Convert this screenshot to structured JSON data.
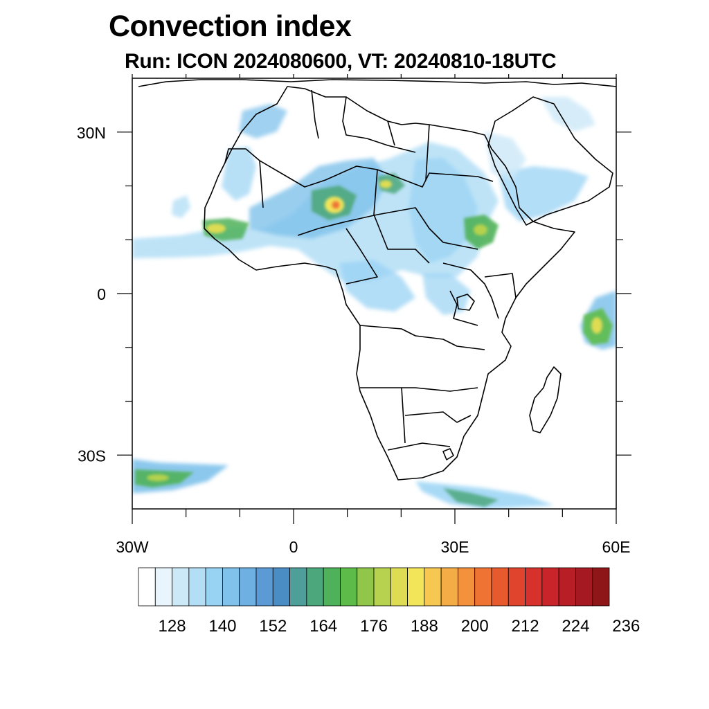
{
  "title": "Convection index",
  "subtitle": "Run: ICON 2024080600,  VT: 20240810-18UTC",
  "axes": {
    "y_labels": [
      {
        "text": "30N",
        "lat": 30
      },
      {
        "text": "0",
        "lat": 0
      },
      {
        "text": "30S",
        "lat": -30
      }
    ],
    "x_labels": [
      {
        "text": "30W",
        "lon": -30
      },
      {
        "text": "0",
        "lon": 0
      },
      {
        "text": "30E",
        "lon": 30
      },
      {
        "text": "60E",
        "lon": 60
      }
    ],
    "lon_range": [
      -30,
      60
    ],
    "lat_range": [
      -40,
      40
    ]
  },
  "colorbar": {
    "colors": [
      "#ffffff",
      "#e8f5fc",
      "#cce9f8",
      "#b3def6",
      "#99d3f4",
      "#80c2eb",
      "#6fb0e2",
      "#5c9ad6",
      "#4a8cc4",
      "#4e9e9a",
      "#4da77c",
      "#4fb15a",
      "#5dbb4a",
      "#90c64a",
      "#b6d24e",
      "#dedc52",
      "#f2e55a",
      "#f6c852",
      "#f4ac46",
      "#f3913c",
      "#ef7434",
      "#e75a2e",
      "#e0442c",
      "#d6312c",
      "#c8242a",
      "#b81e26",
      "#a51a22",
      "#8e1619"
    ],
    "labels": [
      "128",
      "140",
      "152",
      "164",
      "176",
      "188",
      "200",
      "212",
      "224",
      "236"
    ]
  }
}
